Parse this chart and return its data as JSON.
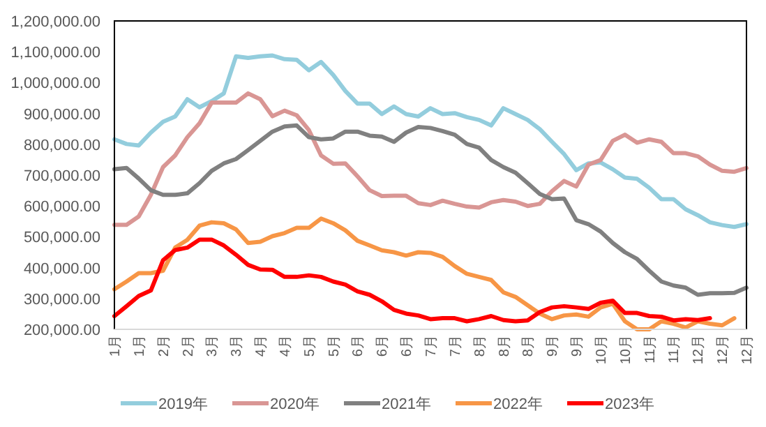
{
  "chart_data": {
    "type": "line",
    "categories": [
      "1月",
      null,
      "1月",
      null,
      "2月",
      null,
      "2月",
      null,
      "3月",
      null,
      "3月",
      null,
      "4月",
      null,
      "4月",
      null,
      "5月",
      null,
      "5月",
      null,
      "6月",
      null,
      "6月",
      null,
      "6月",
      null,
      "7月",
      null,
      "7月",
      null,
      "8月",
      null,
      "8月",
      null,
      "8月",
      null,
      "9月",
      null,
      "9月",
      null,
      "10月",
      null,
      "10月",
      null,
      "11月",
      null,
      "11月",
      null,
      "12月",
      null,
      "12月",
      null,
      "12月"
    ],
    "series": [
      {
        "name": "2019年",
        "color": "#93cddd",
        "values": [
          816000,
          801000,
          796000,
          838000,
          873000,
          890000,
          946000,
          920000,
          940000,
          965000,
          1085000,
          1080000,
          1085000,
          1088000,
          1076000,
          1074000,
          1040000,
          1067000,
          1025000,
          973000,
          932000,
          932000,
          898000,
          923000,
          898000,
          890000,
          917000,
          898000,
          901000,
          888000,
          879000,
          861000,
          917000,
          898000,
          879000,
          849000,
          808000,
          768000,
          716000,
          738000,
          741000,
          719000,
          692000,
          688000,
          659000,
          622000,
          622000,
          589000,
          570000,
          547000,
          538000,
          532000,
          541000
        ]
      },
      {
        "name": "2020年",
        "color": "#d99694",
        "values": [
          539000,
          539000,
          566000,
          636000,
          726000,
          764000,
          823000,
          868000,
          935000,
          935000,
          935000,
          965000,
          946000,
          891000,
          909000,
          894000,
          846000,
          764000,
          737000,
          738000,
          696000,
          651000,
          632000,
          633000,
          633000,
          609000,
          603000,
          617000,
          607000,
          598000,
          595000,
          612000,
          619000,
          614000,
          600000,
          607000,
          648000,
          681000,
          663000,
          734000,
          749000,
          811000,
          831000,
          805000,
          816000,
          808000,
          771000,
          771000,
          761000,
          734000,
          714000,
          711000,
          723000
        ]
      },
      {
        "name": "2021年",
        "color": "#808080",
        "values": [
          719000,
          723000,
          689000,
          651000,
          636000,
          636000,
          641000,
          674000,
          714000,
          738000,
          752000,
          781000,
          811000,
          841000,
          858000,
          861000,
          823000,
          816000,
          819000,
          841000,
          841000,
          828000,
          825000,
          808000,
          838000,
          856000,
          853000,
          843000,
          831000,
          801000,
          789000,
          749000,
          726000,
          708000,
          674000,
          639000,
          622000,
          624000,
          554000,
          541000,
          517000,
          480000,
          450000,
          428000,
          390000,
          355000,
          342000,
          335000,
          312000,
          317000,
          317000,
          318000,
          335000
        ]
      },
      {
        "name": "2022年",
        "color": "#f79646",
        "values": [
          330000,
          355000,
          382000,
          382000,
          390000,
          465000,
          490000,
          536000,
          547000,
          544000,
          524000,
          480000,
          484000,
          502000,
          512000,
          529000,
          529000,
          559000,
          544000,
          521000,
          487000,
          472000,
          456000,
          450000,
          439000,
          450000,
          448000,
          435000,
          405000,
          380000,
          370000,
          360000,
          320000,
          305000,
          278000,
          251000,
          233000,
          245000,
          248000,
          241000,
          271000,
          283000,
          226000,
          200000,
          200000,
          226000,
          218000,
          206000,
          226000,
          218000,
          213000,
          236000,
          null
        ]
      },
      {
        "name": "2023年",
        "color": "#ff0000",
        "values": [
          243000,
          275000,
          308000,
          326000,
          424000,
          457000,
          465000,
          491000,
          491000,
          472000,
          442000,
          409000,
          394000,
          393000,
          370000,
          370000,
          375000,
          370000,
          355000,
          345000,
          323000,
          312000,
          291000,
          263000,
          251000,
          245000,
          233000,
          236000,
          236000,
          226000,
          233000,
          243000,
          230000,
          226000,
          229000,
          256000,
          271000,
          275000,
          271000,
          266000,
          286000,
          293000,
          253000,
          253000,
          243000,
          241000,
          229000,
          233000,
          230000,
          236000,
          null,
          null,
          null
        ]
      }
    ],
    "ylim": [
      200000,
      1200000
    ],
    "yticks": [
      {
        "value": 200000,
        "label": "200,000.00"
      },
      {
        "value": 300000,
        "label": "300,000.00"
      },
      {
        "value": 400000,
        "label": "400,000.00"
      },
      {
        "value": 500000,
        "label": "500,000.00"
      },
      {
        "value": 600000,
        "label": "600,000.00"
      },
      {
        "value": 700000,
        "label": "700,000.00"
      },
      {
        "value": 800000,
        "label": "800,000.00"
      },
      {
        "value": 900000,
        "label": "900,000.00"
      },
      {
        "value": 1000000,
        "label": "1,000,000.00"
      },
      {
        "value": 1100000,
        "label": "1,100,000.00"
      },
      {
        "value": 1200000,
        "label": "1,200,000.00"
      }
    ],
    "legend": "bottom",
    "grid": false
  }
}
